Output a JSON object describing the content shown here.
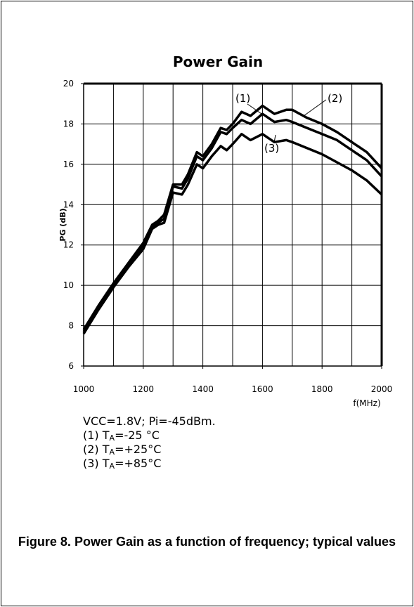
{
  "chart_data": {
    "type": "line",
    "title": "Power Gain",
    "ylabel": "PG (dB)",
    "xlabel": "f(MHz)",
    "x": [
      1000,
      1050,
      1100,
      1150,
      1200,
      1230,
      1250,
      1270,
      1300,
      1330,
      1350,
      1380,
      1400,
      1430,
      1460,
      1480,
      1500,
      1530,
      1560,
      1600,
      1640,
      1680,
      1700,
      1750,
      1800,
      1850,
      1900,
      1950,
      2000
    ],
    "series": [
      {
        "name": "(1)",
        "color": "#000000",
        "values": [
          7.8,
          9.0,
          10.1,
          11.1,
          12.1,
          13.0,
          13.2,
          13.5,
          15.0,
          15.0,
          15.5,
          16.6,
          16.4,
          17.0,
          17.8,
          17.7,
          18.0,
          18.6,
          18.4,
          18.9,
          18.5,
          18.7,
          18.7,
          18.3,
          18.0,
          17.6,
          17.1,
          16.6,
          15.8
        ]
      },
      {
        "name": "(2)",
        "color": "#000000",
        "values": [
          7.7,
          8.9,
          10.0,
          11.0,
          12.0,
          12.9,
          13.1,
          13.3,
          14.9,
          14.8,
          15.3,
          16.4,
          16.2,
          16.8,
          17.6,
          17.5,
          17.8,
          18.2,
          18.0,
          18.5,
          18.1,
          18.2,
          18.1,
          17.8,
          17.5,
          17.2,
          16.7,
          16.2,
          15.4
        ]
      },
      {
        "name": "(3)",
        "color": "#000000",
        "values": [
          7.6,
          8.8,
          9.9,
          10.9,
          11.8,
          12.8,
          13.0,
          13.1,
          14.6,
          14.5,
          15.0,
          16.0,
          15.8,
          16.4,
          16.9,
          16.7,
          17.0,
          17.5,
          17.2,
          17.5,
          17.1,
          17.2,
          17.1,
          16.8,
          16.5,
          16.1,
          15.7,
          15.2,
          14.5
        ]
      }
    ],
    "xlim": [
      1000,
      2000
    ],
    "ylim": [
      6,
      20
    ],
    "xticks": [
      1000,
      1200,
      1400,
      1600,
      1800,
      2000
    ],
    "xgrid": [
      1000,
      1100,
      1200,
      1300,
      1400,
      1500,
      1600,
      1700,
      1800,
      1900,
      2000
    ],
    "yticks": [
      6,
      8,
      10,
      12,
      14,
      16,
      18,
      20
    ],
    "grid": true
  },
  "conditions": {
    "header": "VCC=1.8V; Pi=-45dBm.",
    "lines": [
      {
        "prefix": "(1) T",
        "sub": "A",
        "suffix": "=-25 °C"
      },
      {
        "prefix": "(2) T",
        "sub": "A",
        "suffix": "=+25°C"
      },
      {
        "prefix": "(3) T",
        "sub": "A",
        "suffix": "=+85°C"
      }
    ]
  },
  "caption": "Figure 8. Power Gain as a function of frequency; typical values"
}
